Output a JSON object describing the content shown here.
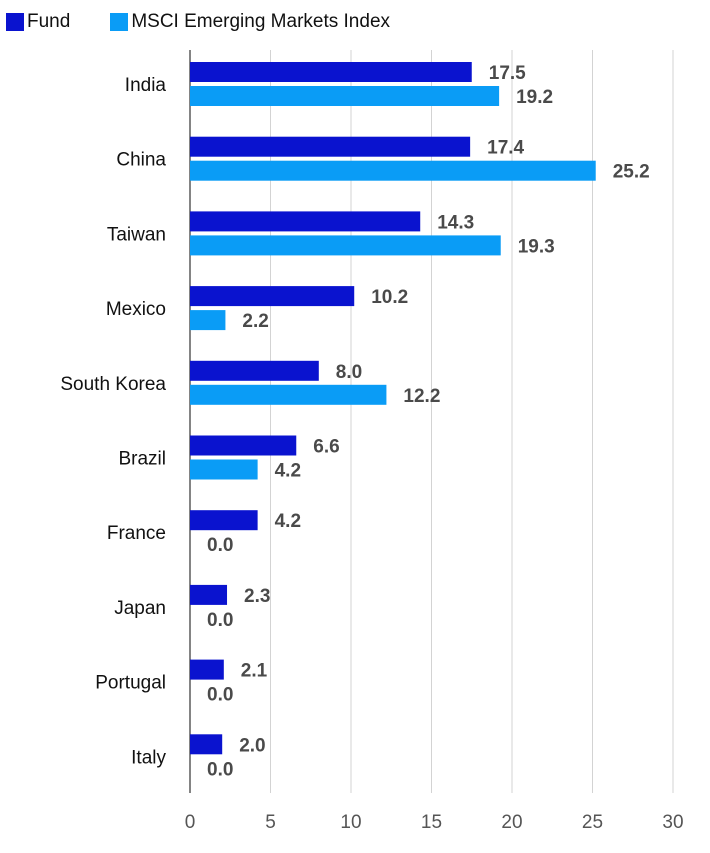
{
  "chart_data": {
    "type": "bar",
    "orientation": "horizontal",
    "title": "",
    "xlabel": "",
    "ylabel": "",
    "xlim": [
      0,
      30
    ],
    "xticks": [
      0,
      5,
      10,
      15,
      20,
      25,
      30
    ],
    "grid": true,
    "legend_position": "top-left",
    "categories": [
      "India",
      "China",
      "Taiwan",
      "Mexico",
      "South Korea",
      "Brazil",
      "France",
      "Japan",
      "Portugal",
      "Italy"
    ],
    "series": [
      {
        "name": "Fund",
        "color": "#0a13cf",
        "values": [
          17.5,
          17.4,
          14.3,
          10.2,
          8.0,
          6.6,
          4.2,
          2.3,
          2.1,
          2.0
        ],
        "labels": [
          "17.5",
          "17.4",
          "14.3",
          "10.2",
          "8.0",
          "6.6",
          "4.2",
          "2.3",
          "2.1",
          "2.0"
        ]
      },
      {
        "name": "MSCI Emerging Markets Index",
        "color": "#0a9cf6",
        "values": [
          19.2,
          25.2,
          19.3,
          2.2,
          12.2,
          4.2,
          0.0,
          0.0,
          0.0,
          0.0
        ],
        "labels": [
          "19.2",
          "25.2",
          "19.3",
          "2.2",
          "12.2",
          "4.2",
          "0.0",
          "0.0",
          "0.0",
          "0.0"
        ]
      }
    ]
  }
}
